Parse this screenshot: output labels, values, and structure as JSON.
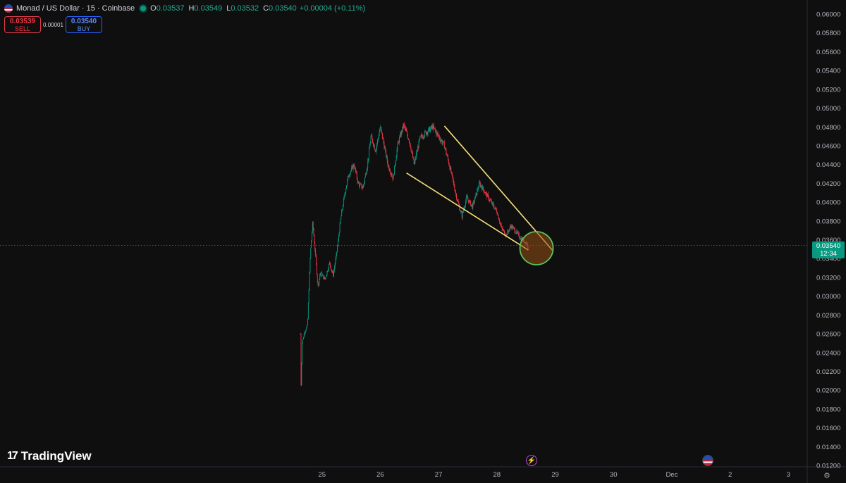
{
  "header": {
    "symbol": "Monad / US Dollar · 15 · Coinbase",
    "o_label": "O",
    "o_value": "0.03537",
    "h_label": "H",
    "h_value": "0.03549",
    "l_label": "L",
    "l_value": "0.03532",
    "c_label": "C",
    "c_value": "0.03540",
    "change": "+0.00004 (+0.11%)"
  },
  "trade": {
    "sell_price": "0.03539",
    "sell_label": "SELL",
    "spread": "0.00001",
    "buy_price": "0.03540",
    "buy_label": "BUY"
  },
  "branding": {
    "logo_text": "TradingView"
  },
  "last_price": {
    "value": "0.03540",
    "countdown": "12:34"
  },
  "colors": {
    "background": "#0f0f0f",
    "up": "#089981",
    "down": "#f23645",
    "trendline": "#f5e07a",
    "highlight": "#4caf50"
  },
  "icons": {
    "event_1": "lightning-icon",
    "event_2": "us-flag-icon",
    "settings": "gear-icon"
  },
  "chart_data": {
    "type": "candlestick",
    "interval": "15",
    "ylim": [
      0.012,
      0.0605
    ],
    "y_ticks": [
      "0.06000",
      "0.05800",
      "0.05600",
      "0.05400",
      "0.05200",
      "0.05000",
      "0.04800",
      "0.04600",
      "0.04400",
      "0.04200",
      "0.04000",
      "0.03800",
      "0.03600",
      "0.03400",
      "0.03200",
      "0.03000",
      "0.02800",
      "0.02600",
      "0.02400",
      "0.02200",
      "0.02000",
      "0.01800",
      "0.01600",
      "0.01400",
      "0.01200"
    ],
    "x_ticks": [
      "25",
      "26",
      "27",
      "28",
      "29",
      "30",
      "Dec",
      "2",
      "3"
    ],
    "x_day_start": 24.0,
    "price_path": [
      [
        24.63,
        0.026
      ],
      [
        24.64,
        0.0205
      ],
      [
        24.66,
        0.025
      ],
      [
        24.7,
        0.0262
      ],
      [
        24.75,
        0.0268
      ],
      [
        24.8,
        0.0345
      ],
      [
        24.84,
        0.0378
      ],
      [
        24.88,
        0.035
      ],
      [
        24.93,
        0.031
      ],
      [
        24.97,
        0.0325
      ],
      [
        25.05,
        0.0318
      ],
      [
        25.13,
        0.0335
      ],
      [
        25.19,
        0.0322
      ],
      [
        25.25,
        0.0345
      ],
      [
        25.32,
        0.0382
      ],
      [
        25.38,
        0.0405
      ],
      [
        25.45,
        0.0428
      ],
      [
        25.55,
        0.044
      ],
      [
        25.62,
        0.042
      ],
      [
        25.7,
        0.0415
      ],
      [
        25.78,
        0.044
      ],
      [
        25.84,
        0.047
      ],
      [
        25.92,
        0.0455
      ],
      [
        26.0,
        0.048
      ],
      [
        26.06,
        0.0462
      ],
      [
        26.13,
        0.044
      ],
      [
        26.22,
        0.0425
      ],
      [
        26.3,
        0.0462
      ],
      [
        26.4,
        0.0482
      ],
      [
        26.5,
        0.0465
      ],
      [
        26.58,
        0.044
      ],
      [
        26.68,
        0.0468
      ],
      [
        26.8,
        0.0475
      ],
      [
        26.9,
        0.048
      ],
      [
        27.0,
        0.047
      ],
      [
        27.1,
        0.046
      ],
      [
        27.22,
        0.043
      ],
      [
        27.32,
        0.0402
      ],
      [
        27.4,
        0.0385
      ],
      [
        27.48,
        0.0405
      ],
      [
        27.58,
        0.0395
      ],
      [
        27.7,
        0.042
      ],
      [
        27.8,
        0.041
      ],
      [
        27.9,
        0.04
      ],
      [
        28.0,
        0.039
      ],
      [
        28.08,
        0.0372
      ],
      [
        28.16,
        0.0365
      ],
      [
        28.24,
        0.0375
      ],
      [
        28.32,
        0.0369
      ],
      [
        28.4,
        0.0362
      ],
      [
        28.48,
        0.0358
      ],
      [
        28.54,
        0.0354
      ]
    ],
    "annotations": {
      "upper_trendline": [
        [
          27.1,
          0.0481
        ],
        [
          28.95,
          0.0349
        ]
      ],
      "lower_trendline": [
        [
          26.45,
          0.0431
        ],
        [
          28.54,
          0.0349
        ]
      ],
      "circle_center": [
        28.68,
        0.0351
      ],
      "last_price_line": 0.0354
    }
  }
}
